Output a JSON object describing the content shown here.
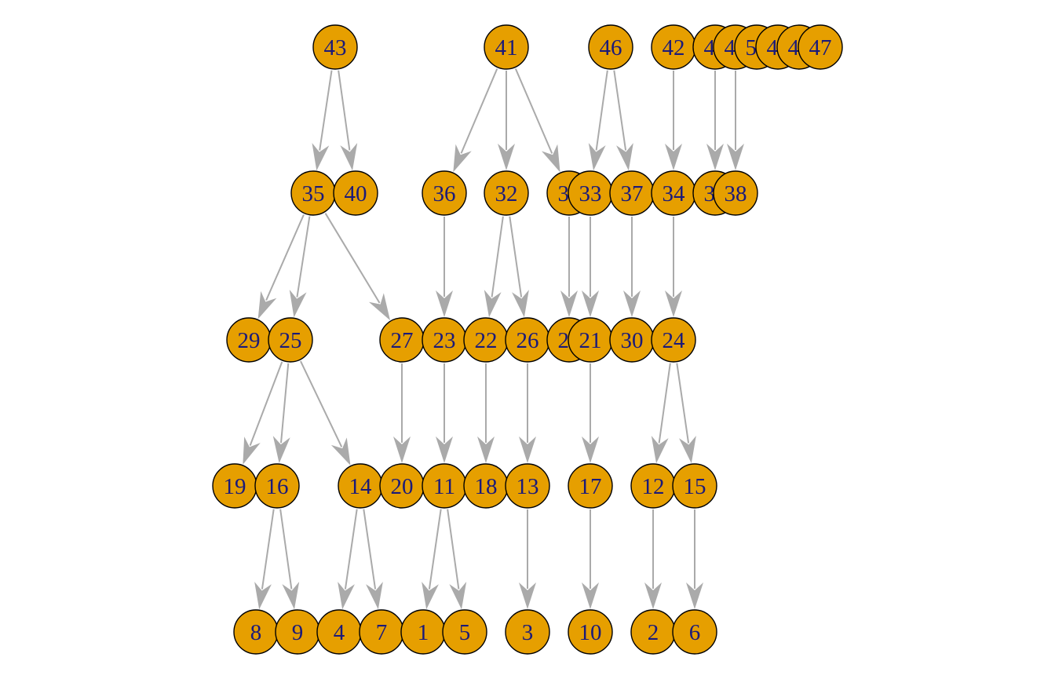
{
  "graph": {
    "type": "tree-diagram",
    "node_fill": "#E69F00",
    "node_stroke": "#000000",
    "label_color": "#1a1a7a",
    "edge_color": "#aaaaaa",
    "levels": [
      [
        "43",
        "41",
        "46",
        "42",
        "45",
        "44",
        "50",
        "49",
        "48",
        "47"
      ],
      [
        "35",
        "40",
        "36",
        "32",
        "31",
        "33",
        "37",
        "34",
        "39",
        "38"
      ],
      [
        "29",
        "25",
        "27",
        "23",
        "22",
        "26",
        "28",
        "21",
        "30",
        "24"
      ],
      [
        "19",
        "16",
        "14",
        "20",
        "11",
        "18",
        "13",
        "17",
        "12",
        "15"
      ],
      [
        "8",
        "9",
        "4",
        "7",
        "1",
        "5",
        "3",
        "10",
        "2",
        "6"
      ]
    ],
    "edges": [
      [
        "43",
        "35"
      ],
      [
        "43",
        "40"
      ],
      [
        "41",
        "36"
      ],
      [
        "41",
        "32"
      ],
      [
        "41",
        "31"
      ],
      [
        "46",
        "33"
      ],
      [
        "46",
        "37"
      ],
      [
        "42",
        "34"
      ],
      [
        "45",
        "39"
      ],
      [
        "44",
        "38"
      ],
      [
        "35",
        "29"
      ],
      [
        "35",
        "25"
      ],
      [
        "35",
        "27"
      ],
      [
        "36",
        "23"
      ],
      [
        "32",
        "22"
      ],
      [
        "32",
        "26"
      ],
      [
        "31",
        "28"
      ],
      [
        "33",
        "21"
      ],
      [
        "37",
        "30"
      ],
      [
        "34",
        "24"
      ],
      [
        "25",
        "19"
      ],
      [
        "25",
        "16"
      ],
      [
        "25",
        "14"
      ],
      [
        "27",
        "20"
      ],
      [
        "23",
        "11"
      ],
      [
        "22",
        "18"
      ],
      [
        "26",
        "13"
      ],
      [
        "21",
        "17"
      ],
      [
        "24",
        "12"
      ],
      [
        "24",
        "15"
      ],
      [
        "16",
        "8"
      ],
      [
        "16",
        "9"
      ],
      [
        "14",
        "4"
      ],
      [
        "14",
        "7"
      ],
      [
        "11",
        "1"
      ],
      [
        "11",
        "5"
      ],
      [
        "13",
        "3"
      ],
      [
        "17",
        "10"
      ],
      [
        "12",
        "2"
      ],
      [
        "15",
        "6"
      ]
    ]
  }
}
